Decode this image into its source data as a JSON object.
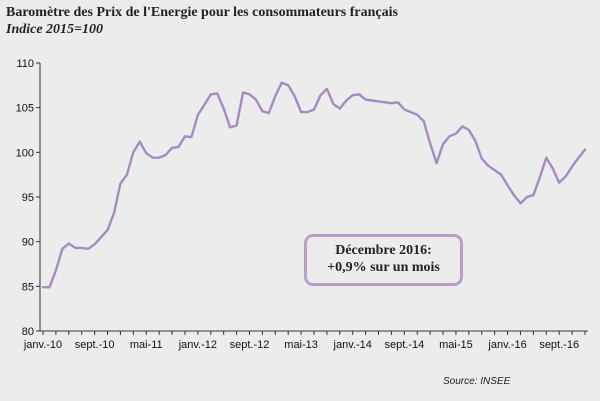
{
  "header": {
    "title": "Baromètre des Prix de l'Energie pour les consommateurs français",
    "subtitle": "Indice 2015=100"
  },
  "annotation": {
    "line1": "Décembre 2016:",
    "line2": "+0,9% sur un mois"
  },
  "source": "Source: INSEE",
  "colors": {
    "line": "#a58bbf",
    "annotation_border": "#b9a0c9",
    "background": "#ececec"
  },
  "chart_data": {
    "type": "line",
    "title": "Baromètre des Prix de l'Energie pour les consommateurs français",
    "subtitle": "Indice 2015=100",
    "ylim": [
      80,
      110
    ],
    "yticks": [
      80,
      85,
      90,
      95,
      100,
      105,
      110
    ],
    "grid": false,
    "x_start": "janv.-10",
    "x_end": "déc.-16",
    "x_tick_labels": [
      "janv.-10",
      "sept.-10",
      "mai-11",
      "janv.-12",
      "sept.-12",
      "mai-13",
      "janv.-14",
      "sept.-14",
      "mai-15",
      "janv.-16",
      "sept.-16"
    ],
    "x_tick_months": [
      0,
      8,
      16,
      24,
      32,
      40,
      48,
      56,
      64,
      72,
      80
    ],
    "series": [
      {
        "values": [
          84.9,
          84.9,
          86.8,
          89.2,
          89.8,
          89.3,
          89.3,
          89.2,
          89.7,
          90.5,
          91.3,
          93.2,
          96.5,
          97.5,
          100.0,
          101.2,
          99.9,
          99.4,
          99.4,
          99.7,
          100.5,
          100.6,
          101.8,
          101.7,
          104.2,
          105.3,
          106.5,
          106.6,
          104.9,
          102.8,
          103.0,
          106.7,
          106.5,
          105.9,
          104.6,
          104.4,
          106.3,
          107.8,
          107.5,
          106.3,
          104.5,
          104.5,
          104.8,
          106.4,
          107.1,
          105.4,
          104.9,
          105.8,
          106.4,
          106.5,
          105.9,
          105.8,
          105.7,
          105.6,
          105.5,
          105.6,
          104.8,
          104.5,
          104.2,
          103.5,
          101.0,
          98.8,
          100.9,
          101.8,
          102.1,
          102.9,
          102.5,
          101.3,
          99.3,
          98.5,
          98.0,
          97.5,
          96.3,
          95.2,
          94.3,
          95.0,
          95.2,
          97.2,
          99.4,
          98.2,
          96.6,
          97.3,
          98.4,
          99.4,
          100.3
        ]
      }
    ]
  }
}
